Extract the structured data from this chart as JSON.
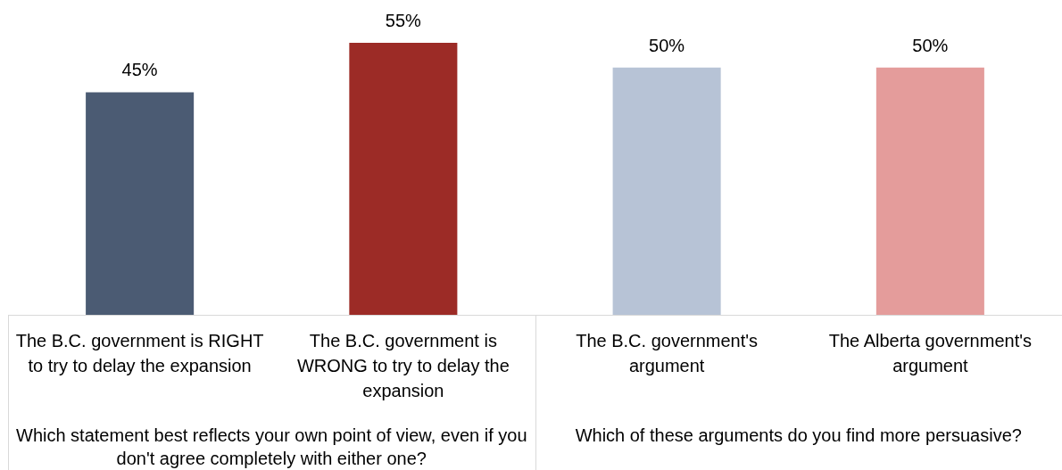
{
  "chart_data": {
    "type": "bar",
    "categories": [
      "The B.C. government is RIGHT to try to delay the expansion",
      "The B.C. government is WRONG to try to delay the expansion",
      "The B.C. government's argument",
      "The Alberta government's argument"
    ],
    "values": [
      45,
      55,
      50,
      50
    ],
    "colors": [
      "#4b5b73",
      "#9c2b26",
      "#b7c3d6",
      "#e49c9b"
    ],
    "value_labels": [
      "45%",
      "55%",
      "50%",
      "50%"
    ],
    "annotations": [
      "Which statement best reflects your own point of view, even if you don't agree completely with either one?",
      "Which of these arguments do you find more persuasive?"
    ]
  }
}
